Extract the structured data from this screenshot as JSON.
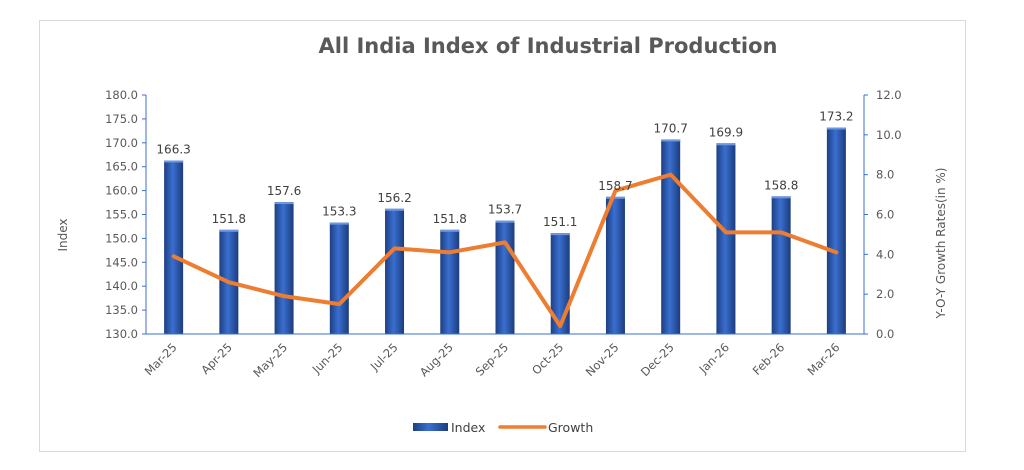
{
  "chart_data": {
    "type": "bar",
    "title": "All India Index of Industrial Production",
    "categories": [
      "Mar-25",
      "Apr-25",
      "May-25",
      "Jun-25",
      "Jul-25",
      "Aug-25",
      "Sep-25",
      "Oct-25",
      "Nov-25",
      "Dec-25",
      "Jan-26",
      "Feb-26",
      "Mar-26"
    ],
    "series": [
      {
        "name": "Index",
        "kind": "bar",
        "axis": "left",
        "color": "#2f5fb3",
        "values": [
          166.3,
          151.8,
          157.6,
          153.3,
          156.2,
          151.8,
          153.7,
          151.1,
          158.7,
          170.7,
          169.9,
          158.8,
          173.2
        ]
      },
      {
        "name": "Growth",
        "kind": "line",
        "axis": "right",
        "color": "#ed7d31",
        "values": [
          3.9,
          2.6,
          1.9,
          1.5,
          4.3,
          4.1,
          4.6,
          0.4,
          7.2,
          8.0,
          5.1,
          5.1,
          4.1
        ]
      }
    ],
    "ylabel": "Index",
    "ylim": [
      130,
      180
    ],
    "yticks": [
      "130.0",
      "135.0",
      "140.0",
      "145.0",
      "150.0",
      "155.0",
      "160.0",
      "165.0",
      "170.0",
      "175.0",
      "180.0"
    ],
    "y2label": "Y-O-Y Growth Rates(in %)",
    "y2lim": [
      0,
      12
    ],
    "y2ticks": [
      "0.0",
      "2.0",
      "4.0",
      "6.0",
      "8.0",
      "10.0",
      "12.0"
    ],
    "data_labels": [
      "166.3",
      "151.8",
      "157.6",
      "153.3",
      "156.2",
      "151.8",
      "153.7",
      "151.1",
      "158.7",
      "170.7",
      "169.9",
      "158.8",
      "173.2"
    ],
    "legend": {
      "position": "bottom",
      "entries": [
        "Index",
        "Growth"
      ]
    },
    "grid": false
  }
}
